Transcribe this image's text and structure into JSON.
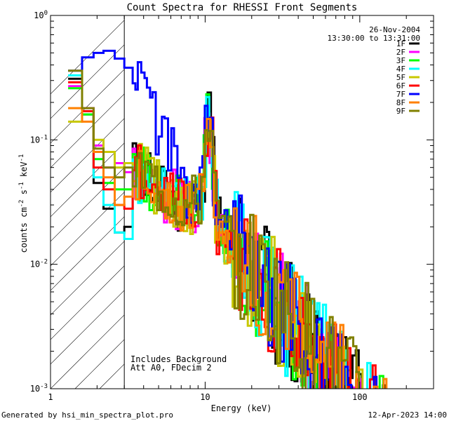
{
  "chart_data": {
    "type": "line",
    "title": "Count Spectra for RHESSI Front Segments",
    "xlabel": "Energy (keV)",
    "ylabel": "counts cm",
    "ylabel_exp1": "-2",
    "ylabel_mid": " s",
    "ylabel_exp2": "-1",
    "ylabel_tail": " keV",
    "ylabel_exp3": "-1",
    "xscale": "log",
    "yscale": "log",
    "xlim": [
      1.0,
      300.0
    ],
    "ylim": [
      0.001,
      1.0
    ],
    "x_ticks": [
      {
        "value": 1,
        "label": "1"
      },
      {
        "value": 10,
        "label": "10"
      },
      {
        "value": 100,
        "label": "100"
      }
    ],
    "y_ticks": [
      {
        "value": 1.0,
        "base": "10",
        "exp": "0"
      },
      {
        "value": 0.1,
        "base": "10",
        "exp": "-1"
      },
      {
        "value": 0.01,
        "base": "10",
        "exp": "-2"
      },
      {
        "value": 0.001,
        "base": "10",
        "exp": "-3"
      }
    ],
    "shaded_region_kev": [
      1.0,
      3.0
    ],
    "legend_header": [
      "26-Nov-2004",
      "13:30:00 to 13:31:00"
    ],
    "legend_position": "top-right",
    "annotations": [
      "Includes Background",
      "Att A0, FDecim 2"
    ],
    "footer_left": "Generated by hsi_min_spectra_plot.pro",
    "footer_right": "12-Apr-2023 14:00",
    "series": [
      {
        "name": "1F",
        "color": "#000000",
        "low": [
          0.31,
          0.16,
          0.045,
          0.028,
          0.018,
          0.02,
          0.022
        ]
      },
      {
        "name": "2F",
        "color": "#ff00ff",
        "low": [
          0.27,
          0.18,
          0.09,
          0.06,
          0.065,
          0.055,
          0.05
        ]
      },
      {
        "name": "3F",
        "color": "#00ff00",
        "low": [
          0.26,
          0.16,
          0.07,
          0.045,
          0.04,
          0.04,
          0.042
        ]
      },
      {
        "name": "4F",
        "color": "#00ffff",
        "low": [
          0.33,
          0.17,
          0.05,
          0.03,
          0.018,
          0.016,
          0.025
        ]
      },
      {
        "name": "5F",
        "color": "#c8c800",
        "low": [
          0.14,
          0.17,
          0.1,
          0.08,
          0.06,
          0.065,
          0.07
        ]
      },
      {
        "name": "6F",
        "color": "#ff0000",
        "low": [
          0.29,
          0.17,
          0.06,
          0.04,
          0.03,
          0.028,
          0.03
        ]
      },
      {
        "name": "7F",
        "color": "#0000ff",
        "low": [
          0.36,
          0.46,
          0.5,
          0.52,
          0.45,
          0.38,
          0.32
        ]
      },
      {
        "name": "8F",
        "color": "#ff8000",
        "low": [
          0.18,
          0.14,
          0.08,
          0.05,
          0.03,
          0.035,
          0.045
        ]
      },
      {
        "name": "9F",
        "color": "#808000",
        "low": [
          0.36,
          0.18,
          0.085,
          0.06,
          0.05,
          0.06,
          0.07
        ]
      }
    ]
  }
}
